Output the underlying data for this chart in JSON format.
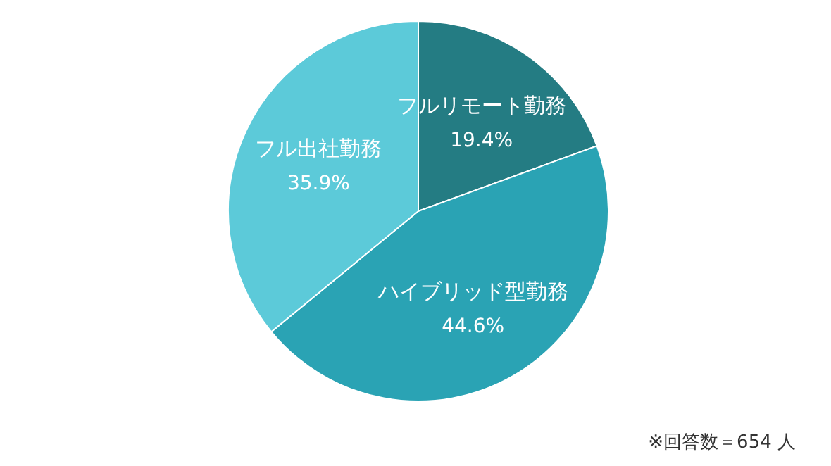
{
  "chart_data": {
    "type": "pie",
    "categories": [
      "フルリモート勤務",
      "ハイブリッド型勤務",
      "フル出社勤務"
    ],
    "values": [
      19.4,
      44.6,
      35.9
    ],
    "colors": [
      "#247c83",
      "#2aa3b4",
      "#5ccad9"
    ],
    "value_labels": [
      "19.4%",
      "44.6%",
      "35.9%"
    ],
    "annotations": [
      "※回答数＝654 人"
    ]
  }
}
